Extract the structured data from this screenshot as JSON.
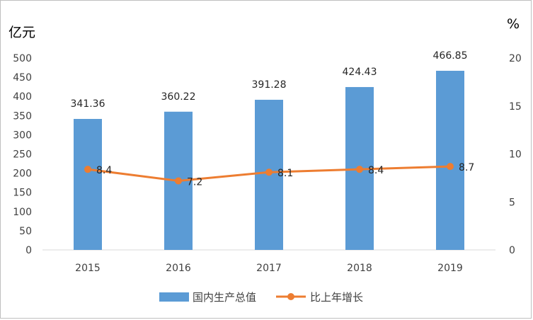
{
  "chart_data": {
    "type": "bar",
    "categories": [
      "2015",
      "2016",
      "2017",
      "2018",
      "2019"
    ],
    "series": [
      {
        "name": "国内生产总值",
        "type": "bar",
        "axis": "left",
        "color": "#5b9bd5",
        "values": [
          341.36,
          360.22,
          391.28,
          424.43,
          466.85
        ],
        "labels": [
          "341.36",
          "360.22",
          "391.28",
          "424.43",
          "466.85"
        ]
      },
      {
        "name": "比上年增长",
        "type": "line",
        "axis": "right",
        "color": "#ed7d31",
        "values": [
          8.4,
          7.2,
          8.1,
          8.4,
          8.7
        ],
        "labels": [
          "8.4",
          "7.2",
          "8.1",
          "8.4",
          "8.7"
        ]
      }
    ],
    "y_left": {
      "unit": "亿元",
      "range": [
        0,
        500
      ],
      "ticks": [
        "0",
        "50",
        "100",
        "150",
        "200",
        "250",
        "300",
        "350",
        "400",
        "450",
        "500"
      ]
    },
    "y_right": {
      "unit": "%",
      "range": [
        0,
        20
      ],
      "ticks": [
        "0",
        "5",
        "10",
        "15",
        "20"
      ]
    },
    "grid": false,
    "legend_position": "bottom"
  }
}
